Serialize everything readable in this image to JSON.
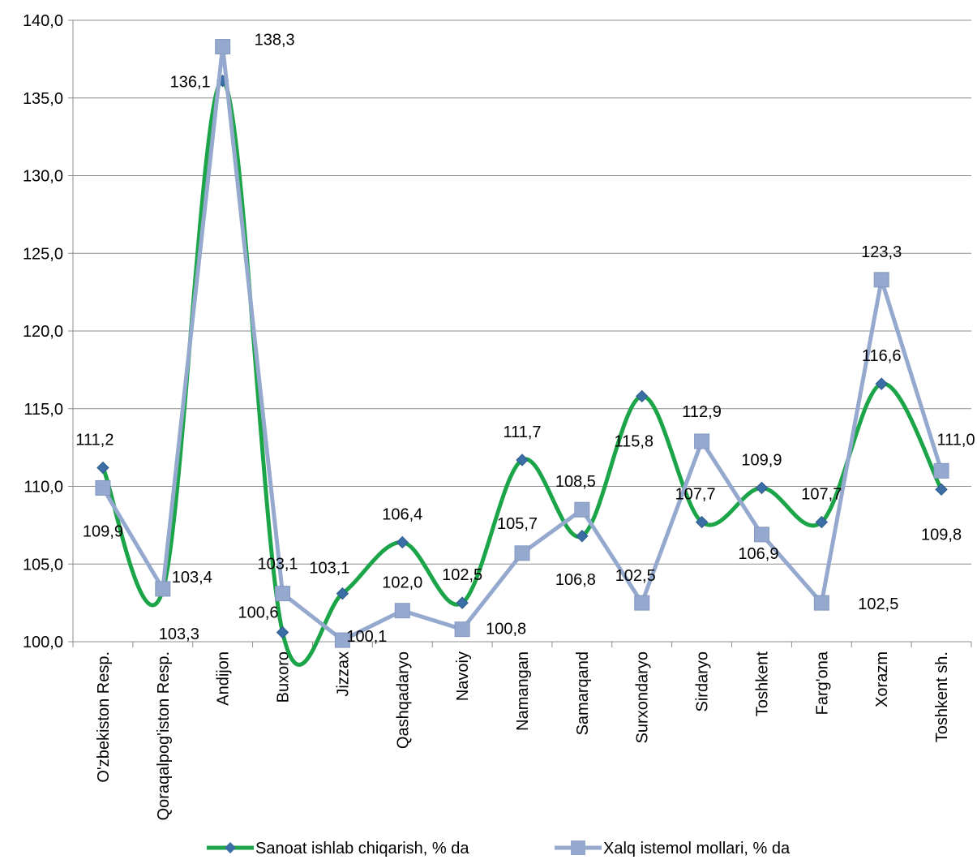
{
  "chart_data": {
    "type": "line",
    "title": "",
    "xlabel": "",
    "ylabel": "",
    "ylim": [
      100,
      140
    ],
    "yticks": [
      "100,0",
      "105,0",
      "110,0",
      "115,0",
      "120,0",
      "125,0",
      "130,0",
      "135,0",
      "140,0"
    ],
    "grid": true,
    "legend_position": "bottom",
    "categories": [
      "O'zbekiston Resp.",
      "Qoraqalpog'iston Resp.",
      "Andijon",
      "Buxoro",
      "Jizzax",
      "Qashqadaryo",
      "Navoiy",
      "Namangan",
      "Samarqand",
      "Surxondaryo",
      "Sirdaryo",
      "Toshkent",
      "Farg'ona",
      "Xorazm",
      "Toshkent sh."
    ],
    "series": [
      {
        "name": "Sanoat ishlab chiqarish, % da",
        "color": "#1BA548",
        "marker_color": "#3A6EA5",
        "marker": "diamond",
        "smooth": true,
        "values": [
          111.2,
          103.3,
          136.1,
          100.6,
          103.1,
          106.4,
          102.5,
          111.7,
          106.8,
          115.8,
          107.7,
          109.9,
          107.7,
          116.6,
          109.8
        ],
        "labels": [
          "111,2",
          "103,3",
          "136,1",
          "100,6",
          "103,1",
          "106,4",
          "102,5",
          "111,7",
          "106,8",
          "115,8",
          "107,7",
          "109,9",
          "107,7",
          "116,6",
          "109,8"
        ]
      },
      {
        "name": "Xalq istemol mollari, % da",
        "color": "#95A9CF",
        "marker_color": "#95A9CF",
        "marker": "square",
        "smooth": false,
        "values": [
          109.9,
          103.4,
          138.3,
          103.1,
          100.1,
          102.0,
          100.8,
          105.7,
          108.5,
          102.5,
          112.9,
          106.9,
          102.5,
          123.3,
          111.0
        ],
        "labels": [
          "109,9",
          "103,4",
          "138,3",
          "103,1",
          "100,1",
          "102,0",
          "100,8",
          "105,7",
          "108,5",
          "102,5",
          "112,9",
          "106,9",
          "102,5",
          "123,3",
          "111,0"
        ]
      }
    ]
  }
}
